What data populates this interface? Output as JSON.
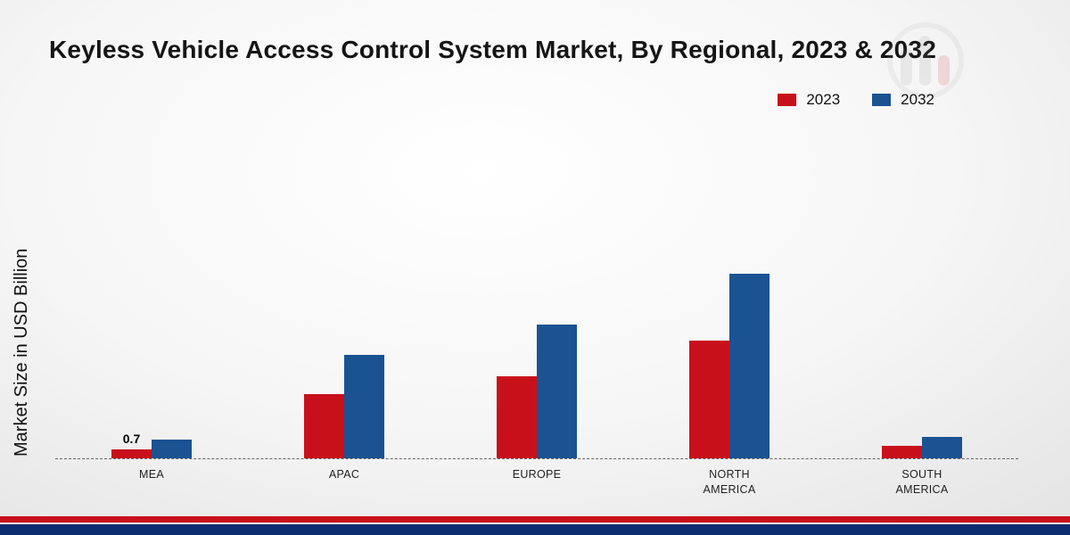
{
  "page": {
    "title": "Keyless Vehicle Access Control System Market, By Regional, 2023 & 2032",
    "ylabel": "Market Size in USD Billion"
  },
  "colors": {
    "series_2023": "#c8101b",
    "series_2032": "#1b5291",
    "footer_red": "#c8101b",
    "footer_navy": "#0b2c6f"
  },
  "chart_data": {
    "type": "bar",
    "title": "Keyless Vehicle Access Control System Market, By Regional, 2023 & 2032",
    "ylabel": "Market Size in USD Billion",
    "xlabel": "",
    "categories": [
      "MEA",
      "APAC",
      "EUROPE",
      "NORTH AMERICA",
      "SOUTH AMERICA"
    ],
    "series": [
      {
        "name": "2023",
        "color": "#c8101b",
        "values": [
          0.7,
          5.0,
          6.4,
          9.2,
          1.0
        ]
      },
      {
        "name": "2032",
        "color": "#1b5291",
        "values": [
          1.5,
          8.1,
          10.5,
          14.5,
          1.7
        ]
      }
    ],
    "bar_labels": [
      {
        "category_index": 0,
        "series_index": 0,
        "text": "0.7"
      }
    ],
    "legend_position": "top-right",
    "grid": false,
    "baseline_style": "dashed"
  }
}
